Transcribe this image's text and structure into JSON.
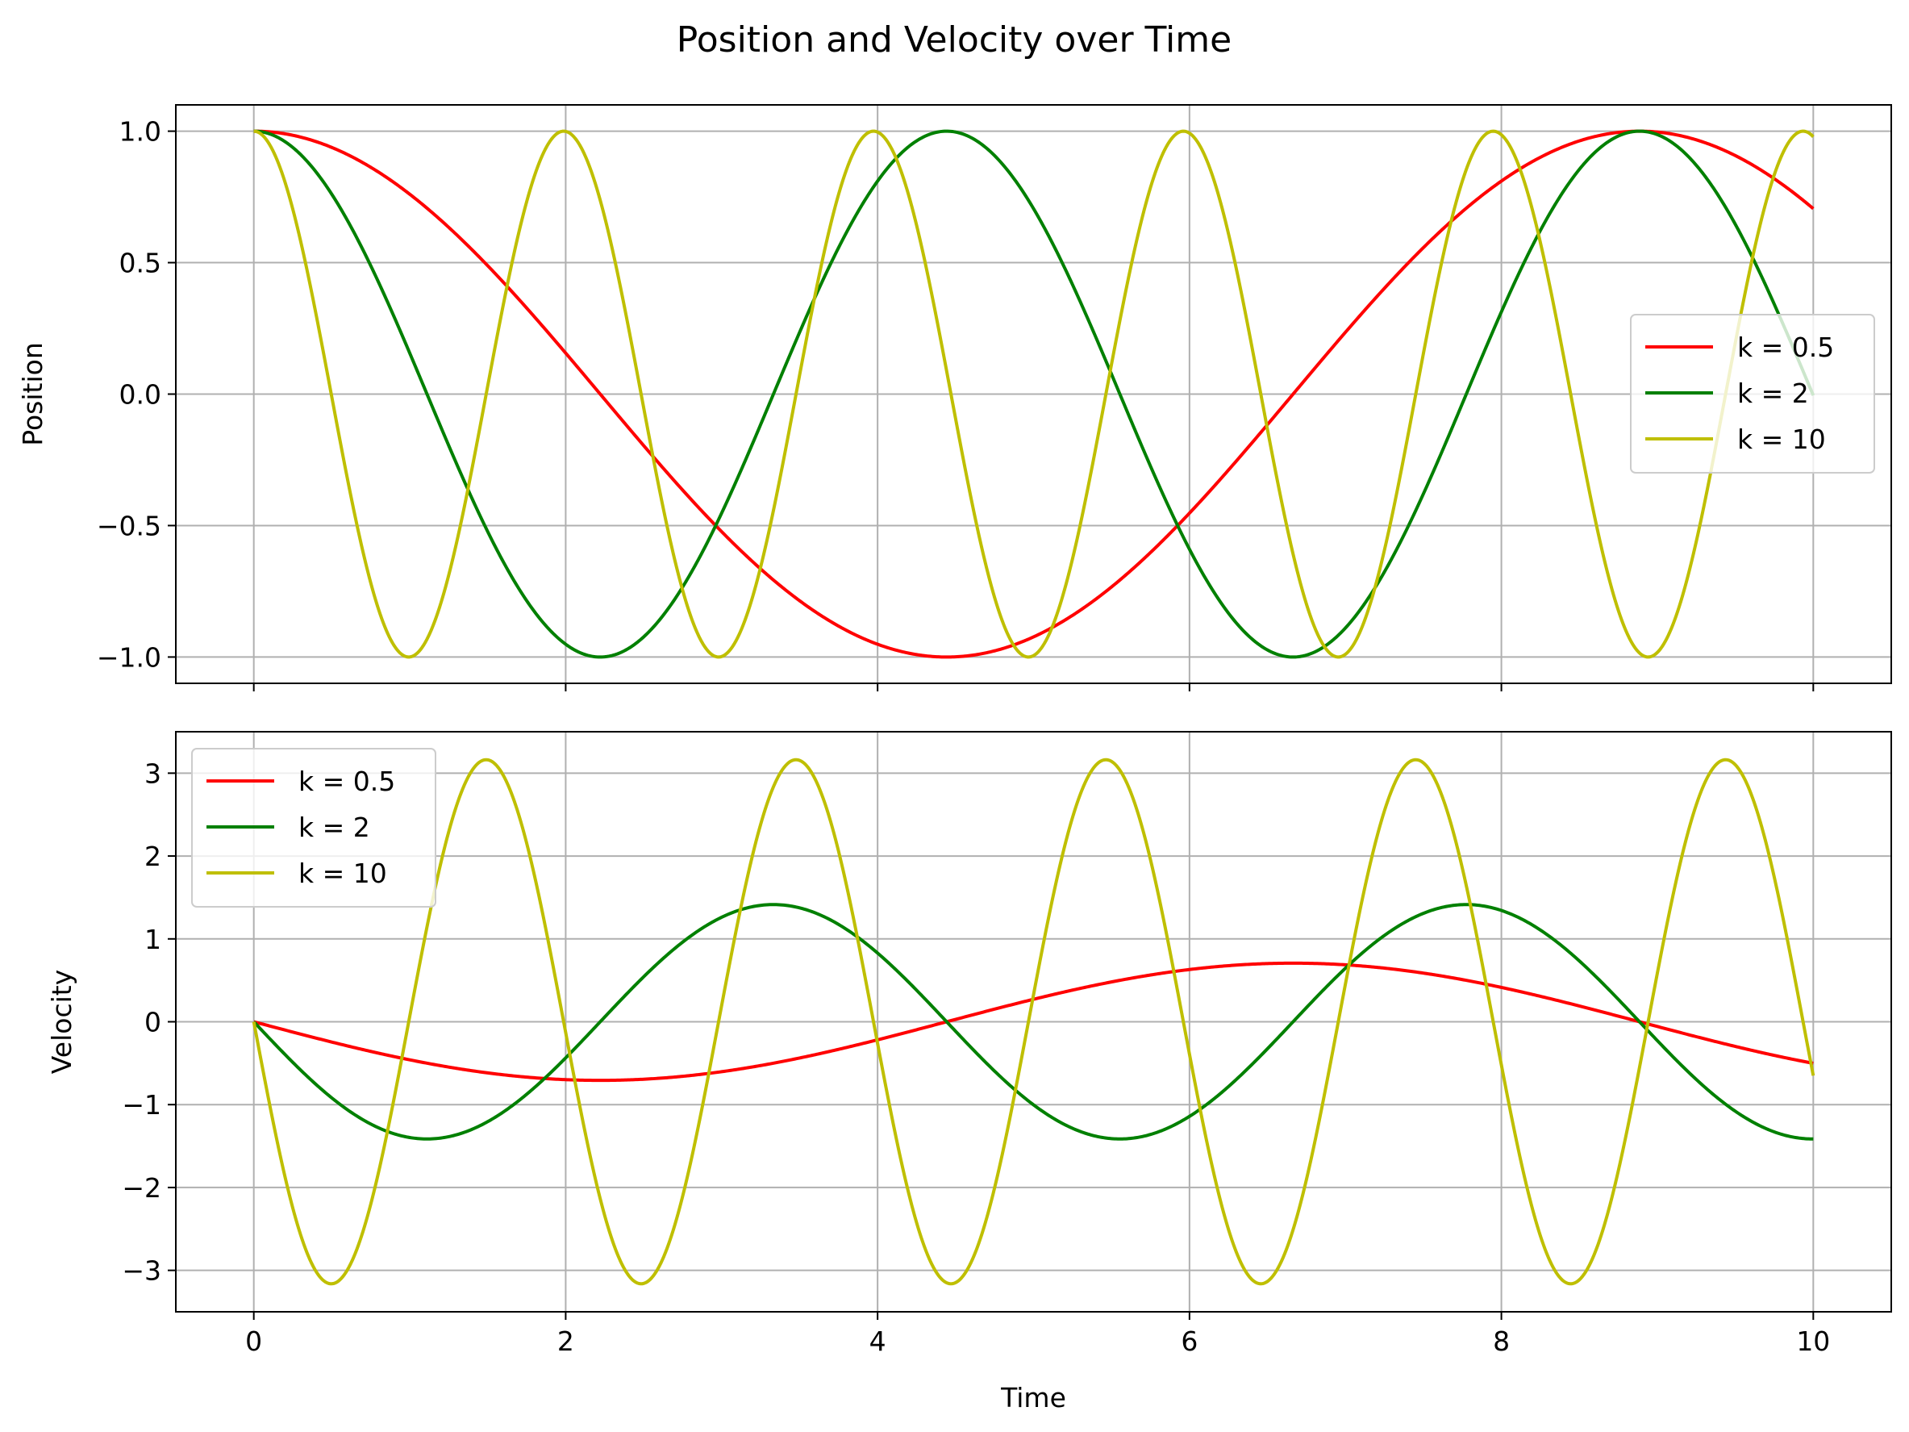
{
  "figure": {
    "title": "Position and Velocity over Time"
  },
  "chart_data": [
    {
      "type": "line",
      "id": "position",
      "title": "",
      "xlabel": "",
      "ylabel": "Position",
      "xlim": [
        -0.5,
        10.5
      ],
      "ylim": [
        -1.1,
        1.1
      ],
      "xticks": [
        0,
        2,
        4,
        6,
        8,
        10
      ],
      "xtick_labels_visible": false,
      "yticks": [
        -1.0,
        -0.5,
        0.0,
        0.5,
        1.0
      ],
      "ytick_labels": [
        "−1.0",
        "−0.5",
        "0.0",
        "0.5",
        "1.0"
      ],
      "grid": true,
      "legend": "center-right",
      "x_range": [
        0,
        10
      ],
      "series": [
        {
          "name": "k = 0.5",
          "color": "#ff0000",
          "function": "cos",
          "omega": 0.7071067811865476,
          "amplitude": 1.0
        },
        {
          "name": "k = 2",
          "color": "#008000",
          "function": "cos",
          "omega": 1.4142135623730951,
          "amplitude": 1.0
        },
        {
          "name": "k = 10",
          "color": "#bfbf00",
          "function": "cos",
          "omega": 3.1622776601683795,
          "amplitude": 1.0
        }
      ]
    },
    {
      "type": "line",
      "id": "velocity",
      "title": "",
      "xlabel": "Time",
      "ylabel": "Velocity",
      "xlim": [
        -0.5,
        10.5
      ],
      "ylim": [
        -3.5,
        3.5
      ],
      "xticks": [
        0,
        2,
        4,
        6,
        8,
        10
      ],
      "xtick_labels": [
        "0",
        "2",
        "4",
        "6",
        "8",
        "10"
      ],
      "yticks": [
        -3,
        -2,
        -1,
        0,
        1,
        2,
        3
      ],
      "ytick_labels": [
        "−3",
        "−2",
        "−1",
        "0",
        "1",
        "2",
        "3"
      ],
      "grid": true,
      "legend": "upper-left",
      "x_range": [
        0,
        10
      ],
      "series": [
        {
          "name": "k = 0.5",
          "color": "#ff0000",
          "function": "neg_sin",
          "omega": 0.7071067811865476,
          "amplitude": 0.7071067811865476
        },
        {
          "name": "k = 2",
          "color": "#008000",
          "function": "neg_sin",
          "omega": 1.4142135623730951,
          "amplitude": 1.4142135623730951
        },
        {
          "name": "k = 10",
          "color": "#bfbf00",
          "function": "neg_sin",
          "omega": 3.1622776601683795,
          "amplitude": 3.1622776601683795
        }
      ]
    }
  ]
}
